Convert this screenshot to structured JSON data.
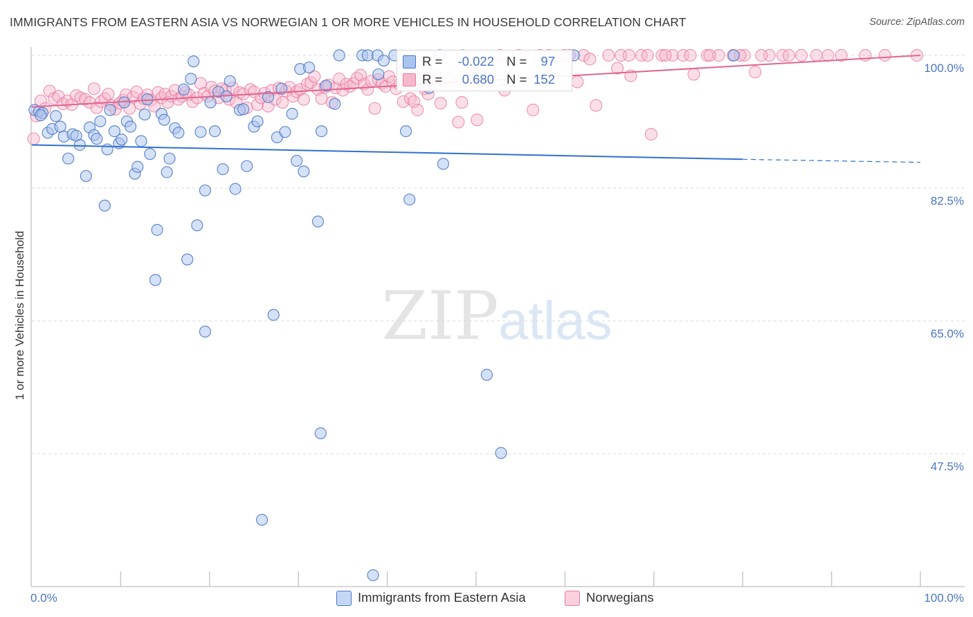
{
  "title": "IMMIGRANTS FROM EASTERN ASIA VS NORWEGIAN 1 OR MORE VEHICLES IN HOUSEHOLD CORRELATION CHART",
  "source": "Source: ZipAtlas.com",
  "watermark": {
    "zip": "ZIP",
    "atlas": "atlas"
  },
  "colors": {
    "blue": "#4a76c4",
    "blue_fill": "#a9c4ef",
    "blue_line": "#2e6fd1",
    "pink": "#e87aa0",
    "pink_fill": "#f6b9cc",
    "pink_line": "#e0658f",
    "grid": "#d9d9d9"
  },
  "legend_top": [
    {
      "r_label": "R =",
      "r_value": "-0.022",
      "n_label": "N =",
      "n_value": "97"
    },
    {
      "r_label": "R =",
      "r_value": "0.680",
      "n_label": "N =",
      "n_value": "152"
    }
  ],
  "legend_bottom": [
    "Immigrants from Eastern Asia",
    "Norwegians"
  ],
  "chart_data": {
    "type": "scatter",
    "title": "IMMIGRANTS FROM EASTERN ASIA VS NORWEGIAN 1 OR MORE VEHICLES IN HOUSEHOLD CORRELATION CHART",
    "xlabel": "",
    "ylabel": "1 or more Vehicles in Household",
    "xlim": [
      0,
      100
    ],
    "ylim": [
      32,
      102
    ],
    "x_ticks": [
      "0.0%",
      "100.0%"
    ],
    "y_ticks": [
      {
        "value": 100.0,
        "label": "100.0%"
      },
      {
        "value": 82.5,
        "label": "82.5%"
      },
      {
        "value": 65.0,
        "label": "65.0%"
      },
      {
        "value": 47.5,
        "label": "47.5%"
      }
    ],
    "legend_position": "bottom",
    "series": [
      {
        "name": "Immigrants from Eastern Asia",
        "r": -0.022,
        "n": 97,
        "trend": {
          "x": [
            0,
            80,
            100
          ],
          "y": [
            88.2,
            86.3,
            85.9
          ],
          "dashed_from": 80
        },
        "points": [
          [
            0.3,
            92.8
          ],
          [
            0.8,
            92.6
          ],
          [
            1.2,
            92.4
          ],
          [
            1.0,
            92.1
          ],
          [
            1.8,
            89.8
          ],
          [
            2.3,
            90.3
          ],
          [
            2.7,
            92.0
          ],
          [
            3.2,
            90.6
          ],
          [
            3.6,
            89.3
          ],
          [
            4.1,
            86.4
          ],
          [
            4.6,
            89.6
          ],
          [
            5.0,
            89.4
          ],
          [
            5.4,
            88.2
          ],
          [
            6.1,
            84.1
          ],
          [
            6.5,
            90.5
          ],
          [
            7.0,
            89.5
          ],
          [
            7.3,
            89.0
          ],
          [
            7.7,
            91.3
          ],
          [
            8.2,
            80.2
          ],
          [
            8.5,
            87.6
          ],
          [
            8.8,
            92.8
          ],
          [
            9.3,
            90.0
          ],
          [
            9.8,
            88.4
          ],
          [
            10.1,
            88.9
          ],
          [
            10.4,
            93.8
          ],
          [
            10.7,
            91.3
          ],
          [
            11.1,
            90.6
          ],
          [
            11.6,
            84.4
          ],
          [
            11.9,
            85.3
          ],
          [
            12.3,
            88.7
          ],
          [
            12.7,
            92.2
          ],
          [
            13.0,
            94.2
          ],
          [
            13.3,
            87.0
          ],
          [
            13.9,
            70.4
          ],
          [
            14.1,
            77.0
          ],
          [
            14.6,
            92.3
          ],
          [
            14.9,
            91.5
          ],
          [
            15.2,
            84.6
          ],
          [
            15.5,
            86.4
          ],
          [
            16.1,
            90.4
          ],
          [
            16.5,
            89.8
          ],
          [
            17.1,
            95.5
          ],
          [
            17.5,
            73.1
          ],
          [
            17.9,
            96.9
          ],
          [
            18.2,
            99.2
          ],
          [
            18.6,
            77.6
          ],
          [
            19.0,
            89.9
          ],
          [
            19.5,
            63.6
          ],
          [
            19.5,
            82.2
          ],
          [
            20.1,
            93.8
          ],
          [
            20.6,
            90.0
          ],
          [
            21.0,
            95.2
          ],
          [
            21.5,
            85.0
          ],
          [
            21.9,
            94.6
          ],
          [
            22.3,
            96.6
          ],
          [
            22.9,
            82.4
          ],
          [
            23.4,
            92.8
          ],
          [
            23.8,
            92.9
          ],
          [
            24.2,
            85.4
          ],
          [
            25.0,
            90.6
          ],
          [
            25.4,
            91.3
          ],
          [
            25.9,
            38.8
          ],
          [
            26.6,
            94.5
          ],
          [
            27.2,
            65.8
          ],
          [
            27.6,
            89.2
          ],
          [
            28.1,
            95.6
          ],
          [
            28.5,
            89.9
          ],
          [
            29.3,
            92.3
          ],
          [
            29.8,
            86.1
          ],
          [
            30.2,
            98.2
          ],
          [
            30.6,
            84.7
          ],
          [
            31.2,
            98.4
          ],
          [
            32.2,
            78.1
          ],
          [
            32.5,
            50.2
          ],
          [
            32.6,
            90.0
          ],
          [
            33.1,
            96.0
          ],
          [
            34.1,
            93.6
          ],
          [
            34.6,
            100.0
          ],
          [
            37.2,
            100.0
          ],
          [
            37.8,
            100.0
          ],
          [
            38.4,
            31.5
          ],
          [
            38.9,
            100.0
          ],
          [
            39.0,
            97.5
          ],
          [
            39.6,
            99.3
          ],
          [
            40.8,
            100.0
          ],
          [
            42.1,
            90.0
          ],
          [
            42.5,
            81.0
          ],
          [
            44.7,
            95.7
          ],
          [
            45.9,
            100.0
          ],
          [
            46.3,
            85.7
          ],
          [
            48.5,
            100.0
          ],
          [
            51.2,
            57.9
          ],
          [
            52.8,
            47.6
          ],
          [
            79.0,
            100.0
          ],
          [
            61.0,
            100.0
          ]
        ]
      },
      {
        "name": "Norwegians",
        "r": 0.68,
        "n": 152,
        "trend": {
          "x": [
            0,
            100
          ],
          "y": [
            93.2,
            100.0
          ]
        },
        "points": [
          [
            0.2,
            89.0
          ],
          [
            0.5,
            92.0
          ],
          [
            1.0,
            94.0
          ],
          [
            1.5,
            93.0
          ],
          [
            2.0,
            95.3
          ],
          [
            2.5,
            94.3
          ],
          [
            3.0,
            94.6
          ],
          [
            3.5,
            93.6
          ],
          [
            4.0,
            94.0
          ],
          [
            4.5,
            93.5
          ],
          [
            5.0,
            94.7
          ],
          [
            5.5,
            94.4
          ],
          [
            6.0,
            94.2
          ],
          [
            6.5,
            93.8
          ],
          [
            7.0,
            95.6
          ],
          [
            7.3,
            93.1
          ],
          [
            7.8,
            93.9
          ],
          [
            8.2,
            94.3
          ],
          [
            8.6,
            94.9
          ],
          [
            9.0,
            93.4
          ],
          [
            9.4,
            92.9
          ],
          [
            9.9,
            93.7
          ],
          [
            10.3,
            94.1
          ],
          [
            10.6,
            94.8
          ],
          [
            11.0,
            93.0
          ],
          [
            11.4,
            94.5
          ],
          [
            11.8,
            95.2
          ],
          [
            12.2,
            93.6
          ],
          [
            12.6,
            94.3
          ],
          [
            13.0,
            94.8
          ],
          [
            13.4,
            94.1
          ],
          [
            13.8,
            93.3
          ],
          [
            14.2,
            95.1
          ],
          [
            14.6,
            94.4
          ],
          [
            15.0,
            94.9
          ],
          [
            15.3,
            93.8
          ],
          [
            15.7,
            94.6
          ],
          [
            16.1,
            95.4
          ],
          [
            16.5,
            94.2
          ],
          [
            16.9,
            94.6
          ],
          [
            17.3,
            95.1
          ],
          [
            17.7,
            94.8
          ],
          [
            18.1,
            93.9
          ],
          [
            18.6,
            94.4
          ],
          [
            19.0,
            96.3
          ],
          [
            19.4,
            95.0
          ],
          [
            19.8,
            94.6
          ],
          [
            20.2,
            95.8
          ],
          [
            20.6,
            95.3
          ],
          [
            21.0,
            94.4
          ],
          [
            21.4,
            95.6
          ],
          [
            21.8,
            95.4
          ],
          [
            22.2,
            94.2
          ],
          [
            22.6,
            95.7
          ],
          [
            23.0,
            93.8
          ],
          [
            23.4,
            95.1
          ],
          [
            23.8,
            94.9
          ],
          [
            24.2,
            93.1
          ],
          [
            24.6,
            95.5
          ],
          [
            25.0,
            95.2
          ],
          [
            25.4,
            93.5
          ],
          [
            25.8,
            94.4
          ],
          [
            26.2,
            95.0
          ],
          [
            26.6,
            93.3
          ],
          [
            27.0,
            95.4
          ],
          [
            27.4,
            94.2
          ],
          [
            27.8,
            95.7
          ],
          [
            28.2,
            93.8
          ],
          [
            28.6,
            95.3
          ],
          [
            29.0,
            95.8
          ],
          [
            29.4,
            94.6
          ],
          [
            29.8,
            95.2
          ],
          [
            30.2,
            95.5
          ],
          [
            30.6,
            94.2
          ],
          [
            31.0,
            96.2
          ],
          [
            31.4,
            96.4
          ],
          [
            31.8,
            97.2
          ],
          [
            32.2,
            95.5
          ],
          [
            32.6,
            94.3
          ],
          [
            33.0,
            95.8
          ],
          [
            33.4,
            96.1
          ],
          [
            33.8,
            93.8
          ],
          [
            34.2,
            95.7
          ],
          [
            34.6,
            96.9
          ],
          [
            35.0,
            95.4
          ],
          [
            35.4,
            96.2
          ],
          [
            35.8,
            95.9
          ],
          [
            36.2,
            96.3
          ],
          [
            36.6,
            97.0
          ],
          [
            37.0,
            97.4
          ],
          [
            37.4,
            96.2
          ],
          [
            37.8,
            95.5
          ],
          [
            38.2,
            96.6
          ],
          [
            38.6,
            93.0
          ],
          [
            39.0,
            96.8
          ],
          [
            39.4,
            96.3
          ],
          [
            39.8,
            95.9
          ],
          [
            40.2,
            97.2
          ],
          [
            40.6,
            96.5
          ],
          [
            41.0,
            95.6
          ],
          [
            41.4,
            96.2
          ],
          [
            41.8,
            93.9
          ],
          [
            42.2,
            97.0
          ],
          [
            42.6,
            94.3
          ],
          [
            43.0,
            93.9
          ],
          [
            43.4,
            92.8
          ],
          [
            43.8,
            96.5
          ],
          [
            44.2,
            95.6
          ],
          [
            44.6,
            94.9
          ],
          [
            45.0,
            97.1
          ],
          [
            45.4,
            97.3
          ],
          [
            46.0,
            93.7
          ],
          [
            47.1,
            96.7
          ],
          [
            48.0,
            91.2
          ],
          [
            48.4,
            93.8
          ],
          [
            49.6,
            96.2
          ],
          [
            50.1,
            91.5
          ],
          [
            51.3,
            96.5
          ],
          [
            52.7,
            100.0
          ],
          [
            53.2,
            95.4
          ],
          [
            54.8,
            100.0
          ],
          [
            56.4,
            92.8
          ],
          [
            58.2,
            100.0
          ],
          [
            59.9,
            100.0
          ],
          [
            61.4,
            96.5
          ],
          [
            62.1,
            100.0
          ],
          [
            63.5,
            93.4
          ],
          [
            64.9,
            100.0
          ],
          [
            66.3,
            100.0
          ],
          [
            67.4,
            97.3
          ],
          [
            68.6,
            100.0
          ],
          [
            69.7,
            89.6
          ],
          [
            70.9,
            100.0
          ],
          [
            72.1,
            100.0
          ],
          [
            73.3,
            100.0
          ],
          [
            74.5,
            97.5
          ],
          [
            76.0,
            100.0
          ],
          [
            77.3,
            100.0
          ],
          [
            78.9,
            100.0
          ],
          [
            80.2,
            100.0
          ],
          [
            81.4,
            97.8
          ],
          [
            83.0,
            100.0
          ],
          [
            84.5,
            100.0
          ],
          [
            86.6,
            100.0
          ],
          [
            88.3,
            100.0
          ],
          [
            91.1,
            100.0
          ],
          [
            93.8,
            100.0
          ],
          [
            96.0,
            100.0
          ],
          [
            57.2,
            100.0
          ],
          [
            62.8,
            99.5
          ],
          [
            65.9,
            98.3
          ],
          [
            67.2,
            100.0
          ],
          [
            69.3,
            100.0
          ],
          [
            71.3,
            100.0
          ],
          [
            74.1,
            100.0
          ],
          [
            76.3,
            100.0
          ],
          [
            79.7,
            100.0
          ],
          [
            82.1,
            100.0
          ],
          [
            85.2,
            100.0
          ],
          [
            89.6,
            100.0
          ],
          [
            99.6,
            100.0
          ],
          [
            60.5,
            100.0
          ]
        ]
      }
    ]
  }
}
